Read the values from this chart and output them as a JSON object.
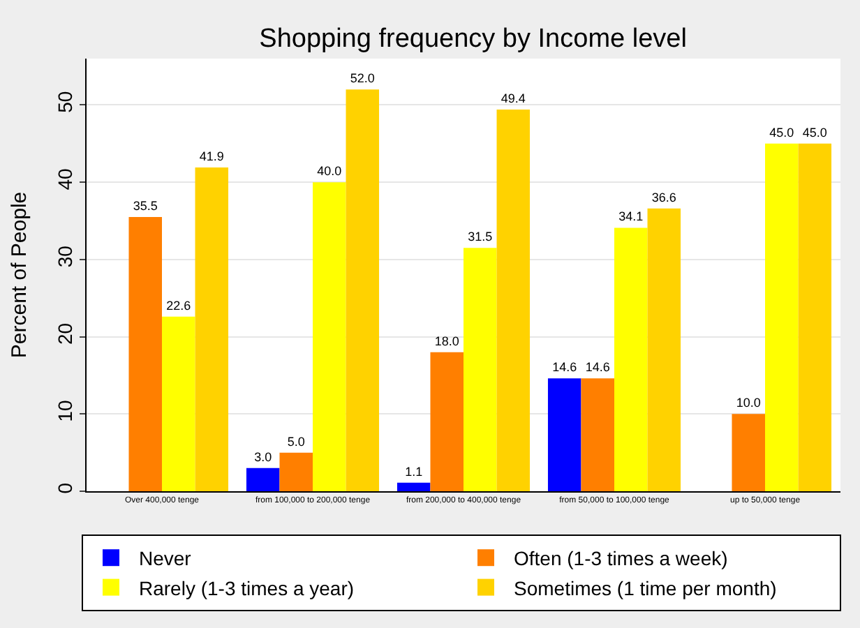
{
  "chart_data": {
    "type": "bar",
    "title": "Shopping frequency by Income level",
    "ylabel": "Percent of People",
    "categories": [
      "Over 400,000 tenge",
      "from 100,000 to 200,000 tenge",
      "from 200,000 to 400,000 tenge",
      "from 50,000 to 100,000 tenge",
      "up to 50,000 tenge"
    ],
    "series": [
      {
        "name": "Never",
        "color": "#0000ff",
        "values": [
          null,
          3.0,
          1.1,
          14.6,
          null
        ],
        "value_labels": [
          null,
          "3.0",
          "1.1",
          "14.6",
          null
        ]
      },
      {
        "name": "Often (1-3 times a week)",
        "color": "#ff7f00",
        "values": [
          35.5,
          5.0,
          18.0,
          14.6,
          10.0
        ],
        "value_labels": [
          "35.5",
          "5.0",
          "18.0",
          "14.6",
          "10.0"
        ]
      },
      {
        "name": "Rarely (1-3 times a year)",
        "color": "#ffff00",
        "values": [
          22.6,
          40.0,
          31.5,
          34.1,
          45.0
        ],
        "value_labels": [
          "22.6",
          "40.0",
          "31.5",
          "34.1",
          "45.0"
        ]
      },
      {
        "name": "Sometimes (1 time per month)",
        "color": "#ffd200",
        "values": [
          41.9,
          52.0,
          49.4,
          36.6,
          45.0
        ],
        "value_labels": [
          "41.9",
          "52.0",
          "49.4",
          "36.6",
          "45.0"
        ]
      }
    ],
    "ylim": [
      0,
      56
    ],
    "yticks": [
      0,
      10,
      20,
      30,
      40,
      50
    ],
    "grid": "y",
    "legend": "bottom"
  }
}
